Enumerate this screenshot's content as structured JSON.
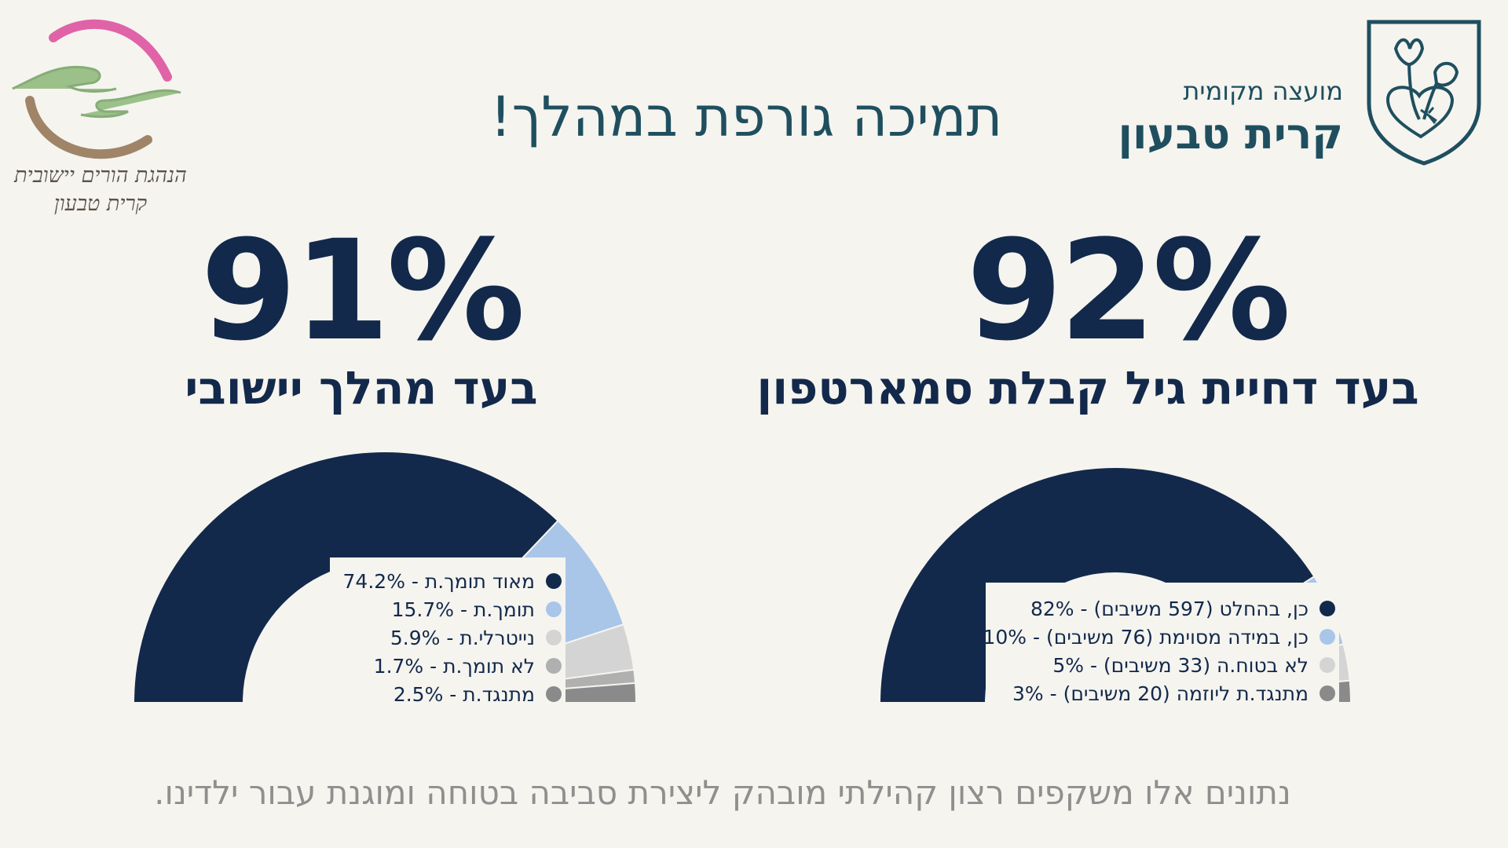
{
  "header": {
    "title": "תמיכה גורפת במהלך!",
    "brand_sub": "מועצה מקומית",
    "brand_main": "קרית טבעון",
    "left_logo_line1": "הנהגת הורים יישובית",
    "left_logo_line2": "קרית טבעון"
  },
  "left_stat": {
    "value": "91%",
    "label": "בעד מהלך יישובי"
  },
  "right_stat": {
    "value": "92%",
    "label": "בעד דחיית גיל קבלת סמארטפון"
  },
  "footer": {
    "text": "נתונים אלו משקפים רצון קהילתי מובהק ליצירת סביבה בטוחה ומוגנת עבור ילדינו."
  },
  "chart_data": [
    {
      "type": "pie",
      "variant": "half-donut",
      "categories": [
        "מאוד תומך.ת",
        "תומך.ת",
        "נייטרלי.ת",
        "לא תומך.ת",
        "מתנגד.ת"
      ],
      "values": [
        74.2,
        15.7,
        5.9,
        1.7,
        2.5
      ],
      "labels": [
        "מאוד תומך.ת - 74.2%",
        "תומך.ת - 15.7%",
        "נייטרלי.ת - 5.9%",
        "לא תומך.ת - 1.7%",
        "מתנגד.ת - 2.5%"
      ],
      "colors": [
        "#13294b",
        "#a9c6e8",
        "#d4d4d4",
        "#b0b0b0",
        "#8a8a8a"
      ]
    },
    {
      "type": "pie",
      "variant": "half-donut",
      "categories": [
        "כן, בהחלט",
        "כן, במידה מסוימת",
        "לא בטוח.ה",
        "מתנגד.ת ליוזמה"
      ],
      "values": [
        82,
        10,
        5,
        3
      ],
      "labels": [
        "כן, בהחלט (597 משיבים) - 82%",
        "כן, במידה מסוימת (76 משיבים) - 10%",
        "לא בטוח.ה (33 משיבים) - 5%",
        "מתנגד.ת ליוזמה (20 משיבים) - 3%"
      ],
      "colors": [
        "#13294b",
        "#a9c6e8",
        "#d4d4d4",
        "#8a8a8a"
      ]
    }
  ],
  "colors": {
    "navy": "#13294b",
    "teal": "#1f4f5f",
    "pink": "#e063a8",
    "green": "#9cc08a",
    "brown": "#a08468"
  },
  "icons": [
    "two-hands-logo-icon",
    "shield-flower-logo-icon"
  ]
}
